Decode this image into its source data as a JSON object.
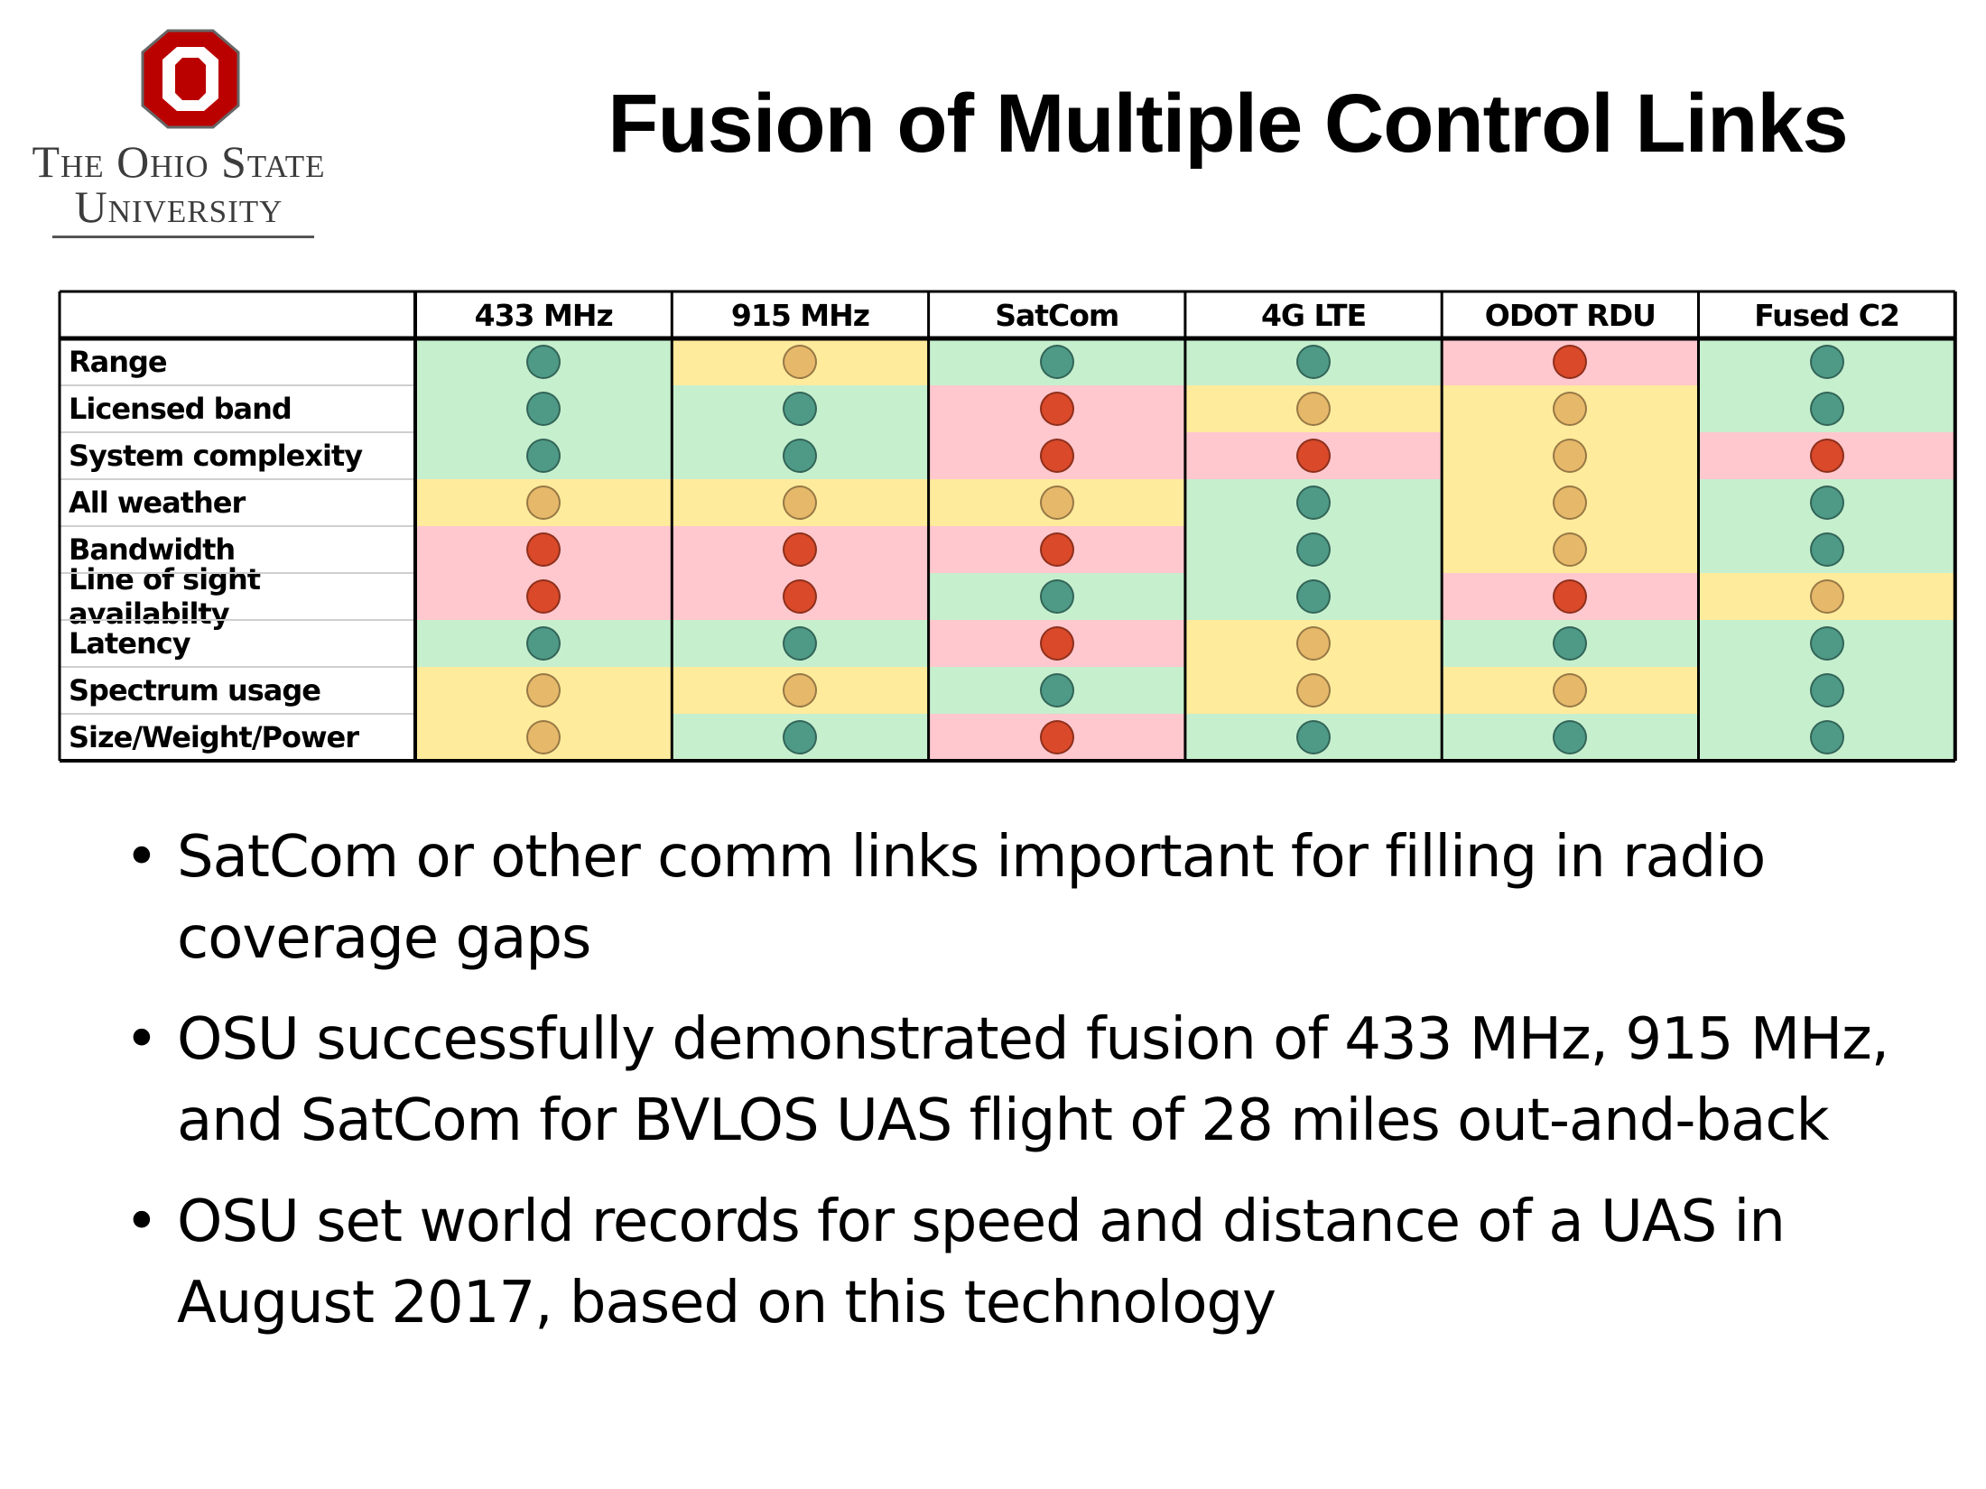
{
  "logo": {
    "line1": "The Ohio State",
    "line2": "University",
    "color": "#bb0000"
  },
  "title": "Fusion of Multiple Control Links",
  "table": {
    "columns": [
      "433 MHz",
      "915 MHz",
      "SatCom",
      "4G LTE",
      "ODOT RDU",
      "Fused C2"
    ],
    "rows": [
      {
        "label": "Range",
        "ratings": [
          "good",
          "fair",
          "good",
          "good",
          "poor",
          "good"
        ]
      },
      {
        "label": "Licensed band",
        "ratings": [
          "good",
          "good",
          "poor",
          "fair",
          "fair",
          "good"
        ]
      },
      {
        "label": "System complexity",
        "ratings": [
          "good",
          "good",
          "poor",
          "poor",
          "fair",
          "poor"
        ]
      },
      {
        "label": "All weather",
        "ratings": [
          "fair",
          "fair",
          "fair",
          "good",
          "fair",
          "good"
        ]
      },
      {
        "label": "Bandwidth",
        "ratings": [
          "poor",
          "poor",
          "poor",
          "good",
          "fair",
          "good"
        ]
      },
      {
        "label": "Line of sight availabilty",
        "ratings": [
          "poor",
          "poor",
          "good",
          "good",
          "poor",
          "fair"
        ]
      },
      {
        "label": "Latency",
        "ratings": [
          "good",
          "good",
          "poor",
          "fair",
          "good",
          "good"
        ]
      },
      {
        "label": "Spectrum usage",
        "ratings": [
          "fair",
          "fair",
          "good",
          "fair",
          "fair",
          "good"
        ]
      },
      {
        "label": "Size/Weight/Power",
        "ratings": [
          "fair",
          "good",
          "poor",
          "good",
          "good",
          "good"
        ]
      }
    ],
    "colors": {
      "good": {
        "background": "#c6efce",
        "dot": "#4e9a86"
      },
      "fair": {
        "background": "#ffeb9c",
        "dot": "#e6b86a"
      },
      "poor": {
        "background": "#ffc7ce",
        "dot": "#d9492a"
      }
    }
  },
  "bullets": [
    "SatCom or other comm links important for filling in radio coverage gaps",
    "OSU successfully demonstrated fusion of 433 MHz, 915 MHz, and SatCom for BVLOS UAS flight of 28 miles out-and-back",
    "OSU set world records for speed and distance of a UAS in August 2017, based on this technology"
  ]
}
